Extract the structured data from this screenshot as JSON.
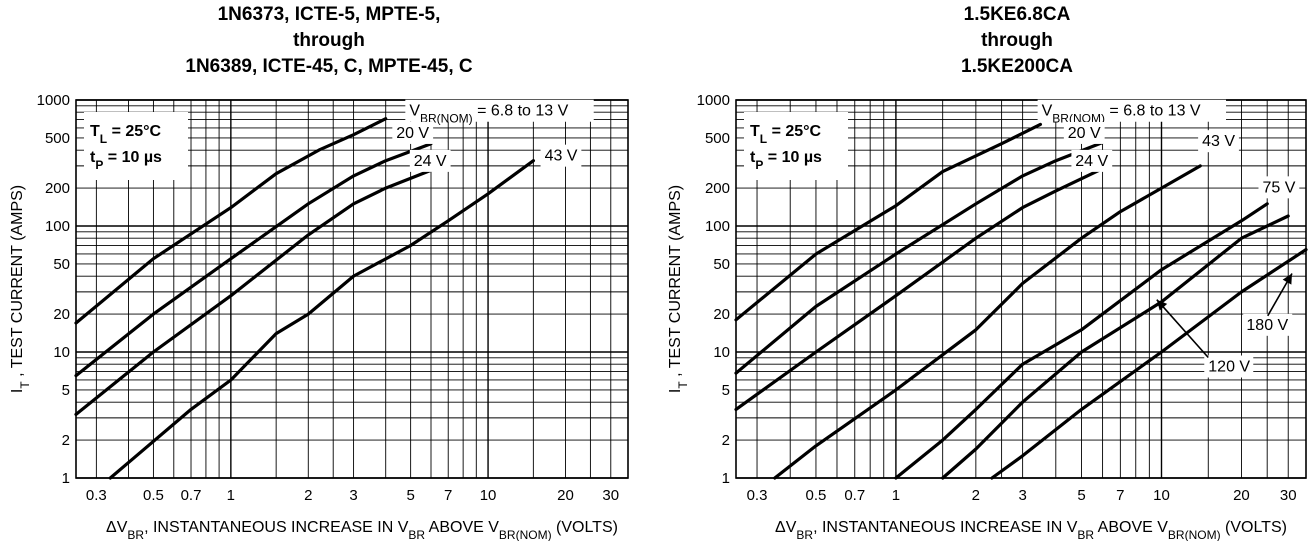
{
  "chart_data": [
    {
      "type": "line",
      "title_lines": [
        "1N6373, ICTE-5, MPTE-5,",
        "through",
        "1N6389, ICTE-45, C, MPTE-45, C"
      ],
      "xlabel": "ΔVBR, INSTANTANEOUS INCREASE IN VBR ABOVE VBR(NOM) (VOLTS)",
      "ylabel": "IT , TEST CURRENT (AMPS)",
      "x_scale": "log",
      "y_scale": "log",
      "xlim": [
        0.25,
        35
      ],
      "ylim": [
        1,
        1000
      ],
      "x_ticks": [
        "0.3",
        "0.5",
        "0.7",
        "1",
        "2",
        "3",
        "5",
        "7",
        "10",
        "20",
        "30"
      ],
      "y_ticks": [
        "1",
        "2",
        "5",
        "10",
        "20",
        "50",
        "100",
        "200",
        "500",
        "1000"
      ],
      "grid": true,
      "annotations": [
        "TL = 25°C",
        "tP = 10 µs"
      ],
      "series": [
        {
          "name": "VBR(NOM) = 6.8 to 13 V",
          "x": [
            0.25,
            0.5,
            1.0,
            1.5,
            2.2,
            3.0,
            4.0
          ],
          "y": [
            17,
            55,
            140,
            260,
            400,
            530,
            710
          ]
        },
        {
          "name": "20 V",
          "x": [
            0.25,
            0.5,
            1.0,
            2.0,
            3.0,
            4.0,
            6.0
          ],
          "y": [
            6.5,
            20,
            55,
            150,
            250,
            330,
            450
          ]
        },
        {
          "name": "24 V",
          "x": [
            0.25,
            0.5,
            1.0,
            2.0,
            3.0,
            4.0,
            6.9
          ],
          "y": [
            3.2,
            10,
            28,
            85,
            150,
            200,
            310
          ]
        },
        {
          "name": "43 V",
          "x": [
            0.34,
            0.7,
            1.0,
            1.5,
            2.0,
            3.0,
            5.0,
            7.0,
            10.0,
            15.0
          ],
          "y": [
            1,
            3.5,
            6,
            14,
            20,
            40,
            70,
            110,
            180,
            330
          ]
        }
      ]
    },
    {
      "type": "line",
      "title_lines": [
        "1.5KE6.8CA",
        "through",
        "1.5KE200CA"
      ],
      "xlabel": "ΔVBR, INSTANTANEOUS INCREASE IN VBR ABOVE VBR(NOM) (VOLTS)",
      "ylabel": "IT , TEST CURRENT (AMPS)",
      "x_scale": "log",
      "y_scale": "log",
      "xlim": [
        0.25,
        35
      ],
      "ylim": [
        1,
        1000
      ],
      "x_ticks": [
        "0.3",
        "0.5",
        "0.7",
        "1",
        "2",
        "3",
        "5",
        "7",
        "10",
        "20",
        "30"
      ],
      "y_ticks": [
        "1",
        "2",
        "5",
        "10",
        "20",
        "50",
        "100",
        "200",
        "500",
        "1000"
      ],
      "grid": true,
      "annotations": [
        "TL = 25°C",
        "tP = 10 µs"
      ],
      "series": [
        {
          "name": "VBR(NOM) = 6.8 to 13 V",
          "x": [
            0.25,
            0.5,
            1.0,
            1.5,
            2.5,
            3.5
          ],
          "y": [
            18,
            60,
            145,
            270,
            450,
            640
          ]
        },
        {
          "name": "20 V",
          "x": [
            0.25,
            0.5,
            1.0,
            2.0,
            3.0,
            4.0,
            6.0
          ],
          "y": [
            6.8,
            23,
            60,
            150,
            250,
            330,
            460
          ]
        },
        {
          "name": "24 V",
          "x": [
            0.25,
            0.5,
            1.0,
            2.0,
            3.0,
            4.0,
            6.3
          ],
          "y": [
            3.5,
            10,
            28,
            80,
            140,
            190,
            300
          ]
        },
        {
          "name": "43 V",
          "x": [
            0.35,
            0.5,
            1.0,
            2.0,
            3.0,
            5.0,
            7.0,
            10.0,
            14.0
          ],
          "y": [
            1,
            1.8,
            5,
            15,
            35,
            80,
            130,
            200,
            300
          ]
        },
        {
          "name": "75 V",
          "x": [
            1.0,
            1.5,
            2.0,
            3.0,
            5.0,
            10.0,
            20.0,
            25.0
          ],
          "y": [
            1,
            2,
            3.5,
            8,
            15,
            45,
            110,
            150
          ]
        },
        {
          "name": "120 V",
          "x": [
            1.5,
            2.0,
            3.0,
            5.0,
            10.0,
            20.0,
            30.0
          ],
          "y": [
            1,
            1.7,
            4,
            10,
            25,
            80,
            120
          ]
        },
        {
          "name": "180 V",
          "x": [
            2.3,
            3.0,
            5.0,
            10.0,
            20.0,
            35.0
          ],
          "y": [
            1,
            1.5,
            3.5,
            10,
            30,
            65
          ]
        }
      ]
    }
  ]
}
